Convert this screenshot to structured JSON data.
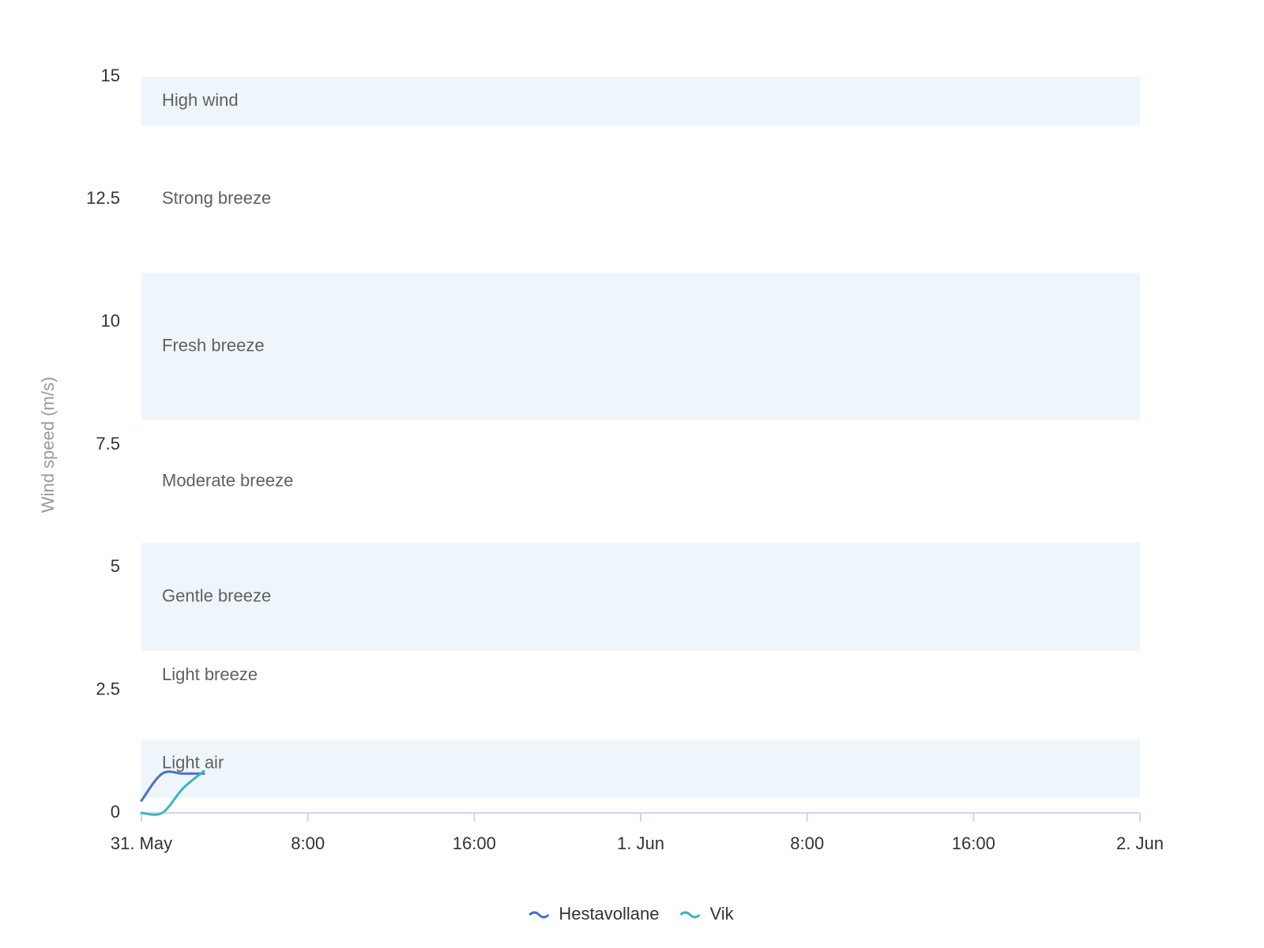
{
  "chart_data": {
    "type": "line",
    "y_axis_title": "Wind speed (m/s)",
    "x": [
      0,
      1,
      2,
      3
    ],
    "xlim": [
      0,
      48
    ],
    "xticks": [
      {
        "value": 0,
        "label": "31. May"
      },
      {
        "value": 8,
        "label": "8:00"
      },
      {
        "value": 16,
        "label": "16:00"
      },
      {
        "value": 24,
        "label": "1. Jun"
      },
      {
        "value": 32,
        "label": "8:00"
      },
      {
        "value": 40,
        "label": "16:00"
      },
      {
        "value": 48,
        "label": "2. Jun"
      }
    ],
    "ylim": [
      0,
      15
    ],
    "yticks": [
      0,
      2.5,
      5,
      7.5,
      10,
      12.5,
      15
    ],
    "grid": false,
    "plot_bands": [
      {
        "label": "Light air",
        "from": 0.3,
        "to": 1.5,
        "color": "#eef6fc"
      },
      {
        "label": "Light breeze",
        "from": 1.5,
        "to": 3.3
      },
      {
        "label": "Gentle breeze",
        "from": 3.3,
        "to": 5.5,
        "color": "#eef6fc"
      },
      {
        "label": "Moderate breeze",
        "from": 5.5,
        "to": 8
      },
      {
        "label": "Fresh breeze",
        "from": 8,
        "to": 11,
        "color": "#eef6fc"
      },
      {
        "label": "Strong breeze",
        "from": 11,
        "to": 14
      },
      {
        "label": "High wind",
        "from": 14,
        "to": 15,
        "color": "#eef6fc"
      }
    ],
    "series": [
      {
        "name": "Hestavollane",
        "color": "#4b70c4",
        "values": [
          0.25,
          0.8,
          0.8,
          0.8
        ]
      },
      {
        "name": "Vik",
        "color": "#3cb4c4",
        "values": [
          0,
          0,
          0.5,
          0.85
        ]
      }
    ],
    "legend": "bottom"
  }
}
